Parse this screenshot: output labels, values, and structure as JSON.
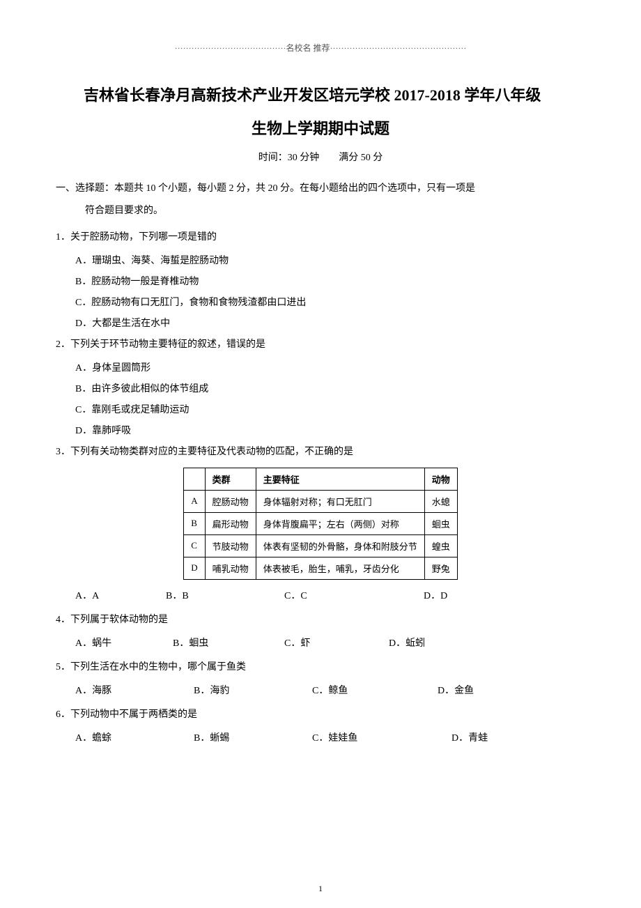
{
  "top_line": "········································名校名 推荐·················································",
  "title_main": "吉林省长春净月高新技术产业开发区培元学校    2017-2018 学年八年级",
  "title_sub": "生物上学期期中试题",
  "exam_info_time": "时间：30 分钟",
  "exam_info_score": "满分 50  分",
  "section1_line1": "一、选择题：本题共   10 个小题，每小题   2 分，共 20 分。在每小题给出的四个选项中，只有一项是",
  "section1_line2": "符合题目要求的。",
  "q1": {
    "stem": "1．关于腔肠动物，下列哪一项是错的",
    "A": "A．珊瑚虫、海葵、海蜇是腔肠动物",
    "B": "B．腔肠动物一般是脊椎动物",
    "C": "C．腔肠动物有口无肛门，食物和食物残渣都由口进出",
    "D": "D．大都是生活在水中"
  },
  "q2": {
    "stem": "2．下列关于环节动物主要特征的叙述，错误的是",
    "A": "A．身体呈圆筒形",
    "B": "B．由许多彼此相似的体节组成",
    "C": "C．靠刚毛或疣足辅助运动",
    "D": "D．靠肺呼吸"
  },
  "q3": {
    "stem": "3．下列有关动物类群对应的主要特征及代表动物的匹配，不正确的是",
    "table": {
      "header": [
        "",
        "类群",
        "主要特征",
        "动物"
      ],
      "rows": [
        [
          "A",
          "腔肠动物",
          "身体辐射对称；有口无肛门",
          "水螅"
        ],
        [
          "B",
          "扁形动物",
          "身体背腹扁平；左右（两侧）对称",
          "蛔虫"
        ],
        [
          "C",
          "节肢动物",
          "体表有坚韧的外骨骼，身体和附肢分节",
          "蝗虫"
        ],
        [
          "D",
          "哺乳动物",
          "体表被毛，胎生，哺乳，牙齿分化",
          "野兔"
        ]
      ]
    },
    "options": {
      "A": "A．A",
      "B": "B．B",
      "C": "C．C",
      "D": "D．D"
    }
  },
  "q4": {
    "stem": "4．下列属于软体动物的是",
    "options": {
      "A": "A．蜗牛",
      "B": "B．蛔虫",
      "C": "C．虾",
      "D": "D．蚯蚓"
    }
  },
  "q5": {
    "stem": "5．下列生活在水中的生物中，哪个属于鱼类",
    "options": {
      "A": "A．海豚",
      "B": "B．海豹",
      "C": "C．鲸鱼",
      "D": "D．金鱼"
    }
  },
  "q6": {
    "stem": "6．下列动物中不属于两栖类的是",
    "options": {
      "A": "A．蟾蜍",
      "B": "B．蜥蜴",
      "C": "C．娃娃鱼",
      "D": "D．青蛙"
    }
  },
  "page_number": "1",
  "layout": {
    "q3_option_widths": [
      130,
      170,
      200,
      100
    ],
    "q4_option_widths": [
      140,
      160,
      150,
      120
    ],
    "q5_option_widths": [
      170,
      170,
      180,
      100
    ],
    "q6_option_widths": [
      170,
      170,
      200,
      100
    ]
  }
}
